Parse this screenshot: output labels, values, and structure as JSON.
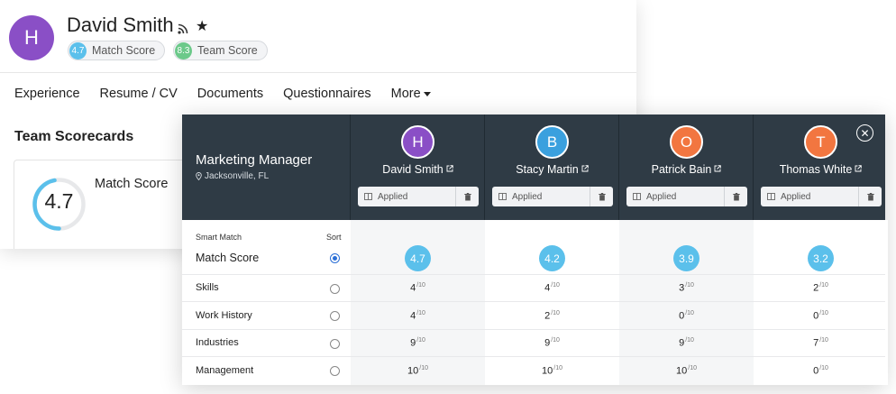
{
  "profile": {
    "avatar_initial": "H",
    "name": "David Smith",
    "match_score": {
      "value": "4.7",
      "label": "Match Score",
      "color": "#5bc0eb"
    },
    "team_score": {
      "value": "8.3",
      "label": "Team Score",
      "color": "#6cc98a"
    },
    "icons": [
      "rss-icon",
      "star-icon"
    ]
  },
  "tabs": [
    "Experience",
    "Resume / CV",
    "Documents",
    "Questionnaires",
    "More"
  ],
  "scorecards": {
    "title": "Team Scorecards",
    "score_value": "4.7",
    "score_fraction": 0.47,
    "score_label": "Match Score"
  },
  "comparison": {
    "job_title": "Marketing Manager",
    "job_location": "Jacksonville, FL",
    "smart_match_label": "Smart Match",
    "sort_label": "Sort",
    "candidates": [
      {
        "initial": "H",
        "name": "David Smith",
        "color": "#8a4fc6",
        "status": "Applied",
        "match": "4.7",
        "scores": [
          "4",
          "4",
          "9",
          "10"
        ]
      },
      {
        "initial": "B",
        "name": "Stacy Martin",
        "color": "#3aa0de",
        "status": "Applied",
        "match": "4.2",
        "scores": [
          "4",
          "2",
          "9",
          "10"
        ]
      },
      {
        "initial": "O",
        "name": "Patrick Bain",
        "color": "#f27640",
        "status": "Applied",
        "match": "3.9",
        "scores": [
          "3",
          "0",
          "9",
          "10"
        ]
      },
      {
        "initial": "T",
        "name": "Thomas White",
        "color": "#f27640",
        "status": "Applied",
        "match": "3.2",
        "scores": [
          "2",
          "0",
          "7",
          "0"
        ]
      }
    ],
    "rows": [
      {
        "label": "Match Score",
        "sort_selected": true
      },
      {
        "label": "Skills",
        "sort_selected": false
      },
      {
        "label": "Work History",
        "sort_selected": false
      },
      {
        "label": "Industries",
        "sort_selected": false
      },
      {
        "label": "Management",
        "sort_selected": false
      }
    ],
    "score_denominator": "/10"
  }
}
